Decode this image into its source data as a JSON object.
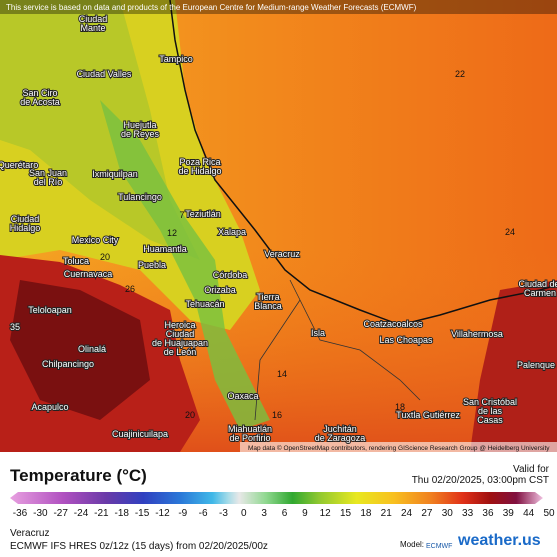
{
  "header": {
    "notice": "This service is based on data and products of the European Centre for Medium-range Weather Forecasts (ECMWF)"
  },
  "map": {
    "cities": [
      [
        "Ciudad",
        "Mante"
      ],
      [
        "Tampico"
      ],
      [
        "Ciudad Valles"
      ],
      [
        "San Ciro",
        "de Acosta"
      ],
      [
        "Huejutla",
        "de Reyes"
      ],
      [
        "Poza Rica",
        "de Hidalgo"
      ],
      [
        "Querétaro"
      ],
      [
        "San Juan",
        "del Río"
      ],
      [
        "Ixmiquilpan"
      ],
      [
        "Tulancingo"
      ],
      [
        "Teziutlán"
      ],
      [
        "Xalapa"
      ],
      [
        "Ciudad",
        "Hidalgo"
      ],
      [
        "Mexico City"
      ],
      [
        "Huamantla"
      ],
      [
        "Veracruz"
      ],
      [
        "Toluca"
      ],
      [
        "Cuernavaca"
      ],
      [
        "Puebla"
      ],
      [
        "Córdoba"
      ],
      [
        "Orizaba"
      ],
      [
        "Tehuacán"
      ],
      [
        "Tierra",
        "Blanca"
      ],
      [
        "Teloloapan"
      ],
      [
        "Heroica",
        "Ciudad",
        "de Huajuapan",
        "de León"
      ],
      [
        "Coatzacoalcos"
      ],
      [
        "Las Choapas"
      ],
      [
        "Villahermosa"
      ],
      [
        "Isla"
      ],
      [
        "Olinalá"
      ],
      [
        "Chilpancingo"
      ],
      [
        "Palenque"
      ],
      [
        "Oaxaca"
      ],
      [
        "Acapulco"
      ],
      [
        "San Cristóbal",
        "de las",
        "Casas"
      ],
      [
        "Tuxtla Gutiérrez"
      ],
      [
        "Ciudad del",
        "Carmen"
      ],
      [
        "Miahuatlán",
        "de Porfirio"
      ],
      [
        "Juchitán",
        "de Zaragoza"
      ],
      [
        "Cuajinicuilapa"
      ]
    ],
    "values": [
      "22",
      "24",
      "35",
      "20",
      "14",
      "16",
      "18",
      "12",
      "7",
      "20",
      "26"
    ],
    "attribution": "Map data © OpenStreetMap contributors, rendering GIScience Research Group @ Heidelberg University"
  },
  "legend": {
    "title": "Temperature (°C)",
    "ticks": [
      "-36",
      "-30",
      "-27",
      "-24",
      "-21",
      "-18",
      "-15",
      "-12",
      "-9",
      "-6",
      "-3",
      "0",
      "3",
      "6",
      "9",
      "12",
      "15",
      "18",
      "21",
      "24",
      "27",
      "30",
      "33",
      "36",
      "39",
      "44",
      "50"
    ],
    "valid_label": "Valid for",
    "valid_time": "Thu 02/20/2025, 03:00pm CST"
  },
  "footer": {
    "region": "Veracruz",
    "model_run": "ECMWF IFS HRES 0z/12z (15 days) from 02/20/2025/00z",
    "model_label": "Model:",
    "model": "ECMWF",
    "brand": "weather.us"
  }
}
